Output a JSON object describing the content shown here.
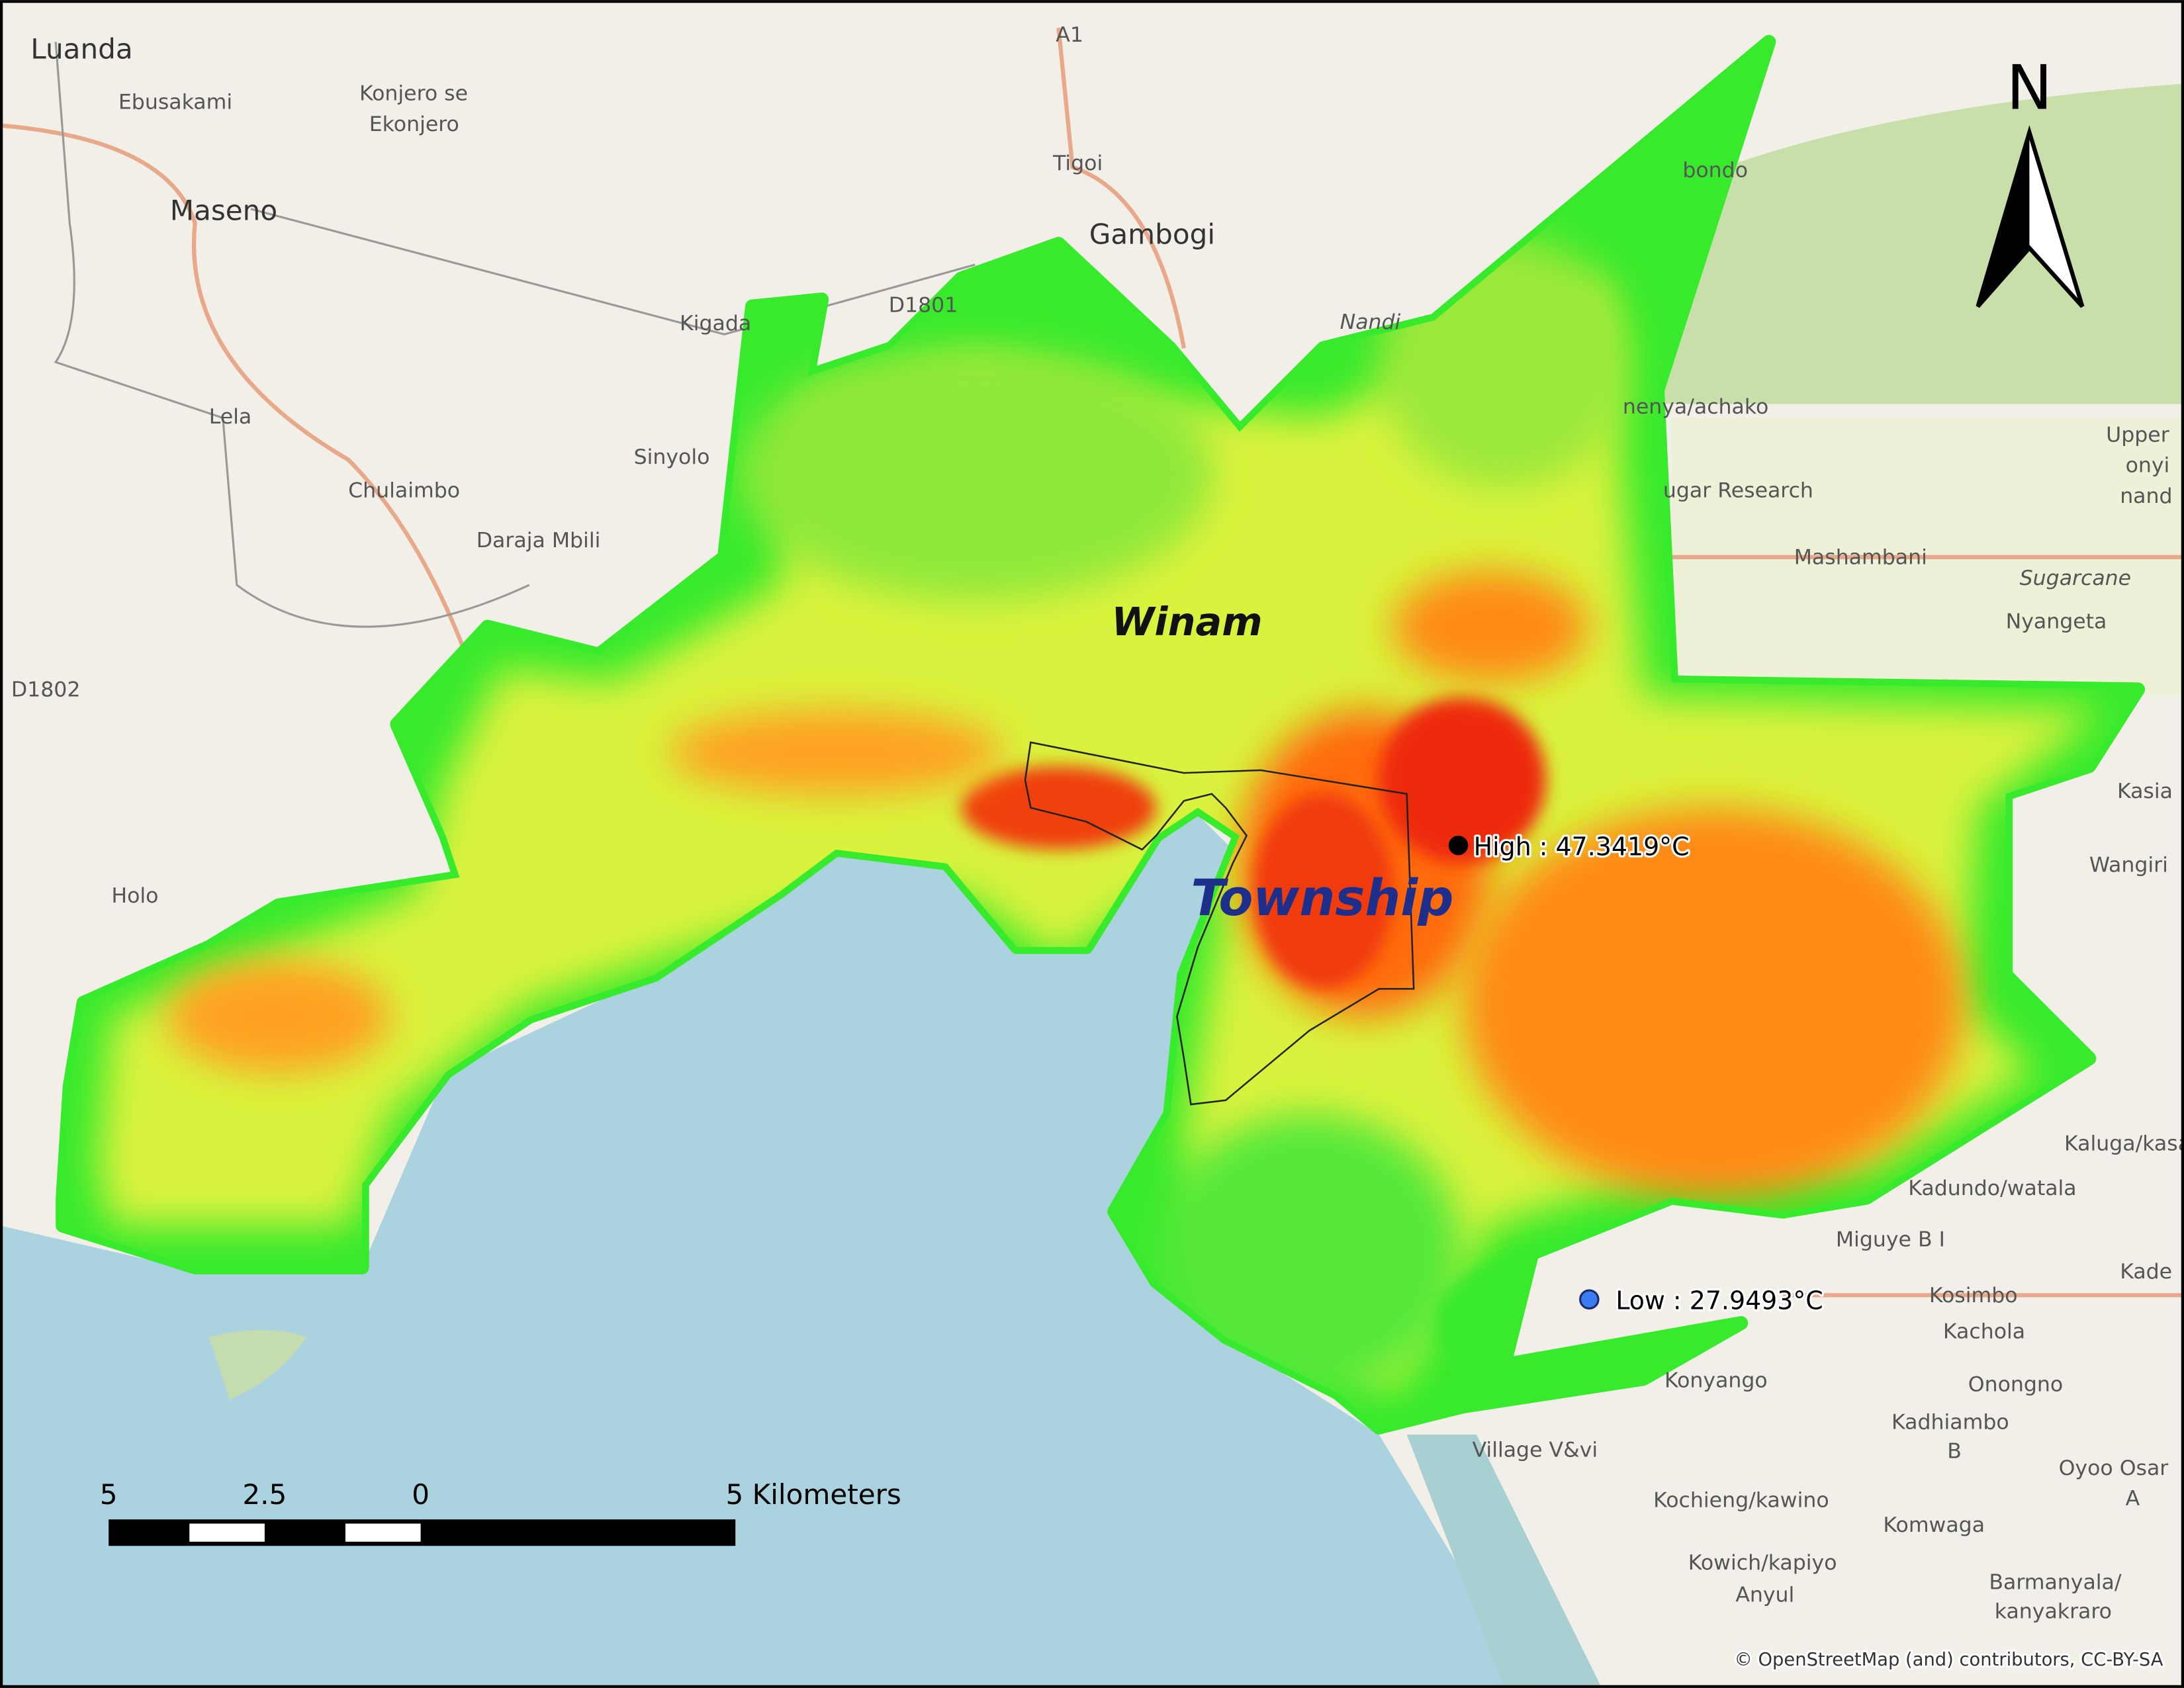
{
  "map": {
    "places": [
      "Luanda",
      "Ebusakami",
      "Konjero se",
      "Ekonjero",
      "Maseno",
      "Tigoi",
      "Gambogi",
      "D1801",
      "Kigada",
      "Nandi",
      "Lela",
      "Sinyolo",
      "Chulaimbo",
      "Daraja Mbili",
      "D1802",
      "Holo",
      "Upper",
      "onyi",
      "nand",
      "ugar Research",
      "Mashambani",
      "Sugarcane",
      "Nyangeta",
      "Kasia",
      "Wangiri",
      "Kaluga/kasa",
      "Kadundo/watala",
      "Miguye B I",
      "Kosimbo",
      "Kachola",
      "Konyango",
      "Onongno",
      "Kadhiambo",
      "B",
      "Village V&vi",
      "Oyoo Osar",
      "A",
      "Kochieng/kawino",
      "Komwaga",
      "Kowich/kapiyo",
      "Anyul",
      "Barmanyala/",
      "kanyakraro",
      "A1",
      "Kade",
      "bondo",
      "nenya/achako"
    ],
    "areas": {
      "winam": "Winam",
      "township": "Township"
    },
    "points": {
      "high": "High : 47.3419°C",
      "low": "Low : 27.9493°C"
    },
    "north": "N",
    "scale_bar": {
      "labels": [
        "5",
        "2.5",
        "0",
        "5 Kilometers"
      ]
    },
    "attribution": "© OpenStreetMap (and) contributors, CC-BY-SA"
  }
}
